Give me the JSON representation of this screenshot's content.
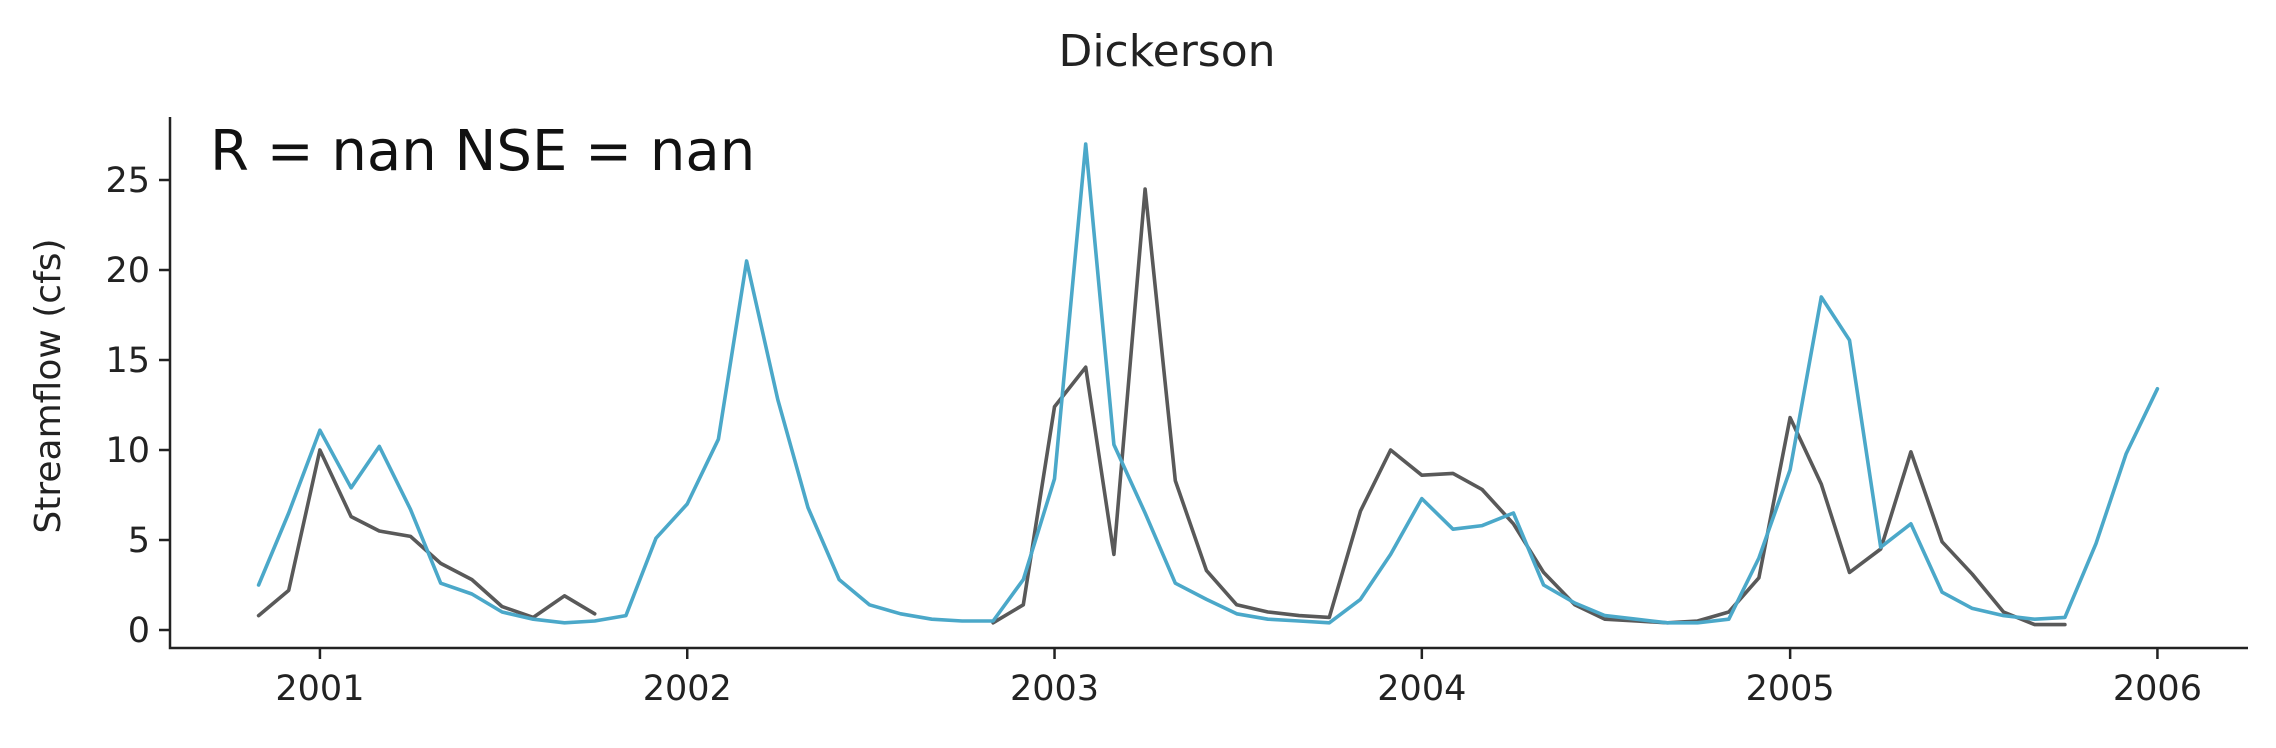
{
  "chart_data": {
    "type": "line",
    "title": "Dickerson",
    "annotation": "R = nan  NSE = nan",
    "xlabel": "",
    "ylabel": "Streamflow (cfs)",
    "xlim": [
      "2000-08-05",
      "2006-04-01"
    ],
    "ylim": [
      -1,
      28.5
    ],
    "x_ticks": [
      "2001-01-01",
      "2002-01-01",
      "2003-01-01",
      "2004-01-01",
      "2005-01-01",
      "2006-01-01"
    ],
    "x_tick_labels": [
      "2001",
      "2002",
      "2003",
      "2004",
      "2005",
      "2006"
    ],
    "y_ticks": [
      0,
      5,
      10,
      15,
      20,
      25
    ],
    "y_tick_labels": [
      "0",
      "5",
      "10",
      "15",
      "20",
      "25"
    ],
    "grid": false,
    "colors": {
      "observed": "#595959",
      "simulated": "#4ba8c9"
    },
    "series": [
      {
        "color_key": "observed",
        "segments": [
          [
            [
              "2000-11-01",
              0.8
            ],
            [
              "2000-12-01",
              2.2
            ],
            [
              "2001-01-01",
              10.0
            ],
            [
              "2001-02-01",
              6.3
            ],
            [
              "2001-03-01",
              5.5
            ],
            [
              "2001-04-01",
              5.2
            ],
            [
              "2001-05-01",
              3.7
            ],
            [
              "2001-06-01",
              2.8
            ],
            [
              "2001-07-01",
              1.3
            ],
            [
              "2001-08-01",
              0.7
            ],
            [
              "2001-09-01",
              1.9
            ],
            [
              "2001-10-01",
              0.9
            ]
          ],
          [
            [
              "2002-11-01",
              0.4
            ],
            [
              "2002-12-01",
              1.4
            ],
            [
              "2003-01-01",
              12.4
            ],
            [
              "2003-02-01",
              14.6
            ],
            [
              "2003-03-01",
              4.2
            ],
            [
              "2003-04-01",
              24.5
            ],
            [
              "2003-05-01",
              8.3
            ],
            [
              "2003-06-01",
              3.3
            ],
            [
              "2003-07-01",
              1.4
            ],
            [
              "2003-08-01",
              1.0
            ],
            [
              "2003-09-01",
              0.8
            ],
            [
              "2003-10-01",
              0.7
            ],
            [
              "2003-11-01",
              6.6
            ],
            [
              "2003-12-01",
              10.0
            ],
            [
              "2004-01-01",
              8.6
            ],
            [
              "2004-02-01",
              8.7
            ],
            [
              "2004-03-01",
              7.8
            ],
            [
              "2004-04-01",
              5.9
            ],
            [
              "2004-05-01",
              3.2
            ],
            [
              "2004-06-01",
              1.4
            ],
            [
              "2004-07-01",
              0.6
            ],
            [
              "2004-08-01",
              0.5
            ],
            [
              "2004-09-01",
              0.4
            ],
            [
              "2004-10-01",
              0.5
            ],
            [
              "2004-11-01",
              1.0
            ],
            [
              "2004-12-01",
              2.9
            ],
            [
              "2005-01-01",
              11.8
            ],
            [
              "2005-02-01",
              8.1
            ],
            [
              "2005-03-01",
              3.2
            ],
            [
              "2005-04-01",
              4.5
            ],
            [
              "2005-05-01",
              9.9
            ],
            [
              "2005-06-01",
              4.9
            ],
            [
              "2005-07-01",
              3.1
            ],
            [
              "2005-08-01",
              1.0
            ],
            [
              "2005-09-01",
              0.3
            ],
            [
              "2005-10-01",
              0.3
            ]
          ]
        ]
      },
      {
        "color_key": "simulated",
        "segments": [
          [
            [
              "2000-11-01",
              2.5
            ],
            [
              "2000-12-01",
              6.5
            ],
            [
              "2001-01-01",
              11.1
            ],
            [
              "2001-02-01",
              7.9
            ],
            [
              "2001-03-01",
              10.2
            ],
            [
              "2001-04-01",
              6.7
            ],
            [
              "2001-05-01",
              2.6
            ],
            [
              "2001-06-01",
              2.0
            ],
            [
              "2001-07-01",
              1.0
            ],
            [
              "2001-08-01",
              0.6
            ],
            [
              "2001-09-01",
              0.4
            ],
            [
              "2001-10-01",
              0.5
            ],
            [
              "2001-11-01",
              0.8
            ],
            [
              "2001-12-01",
              5.1
            ],
            [
              "2002-01-01",
              7.0
            ],
            [
              "2002-02-01",
              10.6
            ],
            [
              "2002-03-01",
              20.5
            ],
            [
              "2002-04-01",
              12.8
            ],
            [
              "2002-05-01",
              6.8
            ],
            [
              "2002-06-01",
              2.8
            ],
            [
              "2002-07-01",
              1.4
            ],
            [
              "2002-08-01",
              0.9
            ],
            [
              "2002-09-01",
              0.6
            ],
            [
              "2002-10-01",
              0.5
            ],
            [
              "2002-11-01",
              0.5
            ],
            [
              "2002-12-01",
              2.8
            ],
            [
              "2003-01-01",
              8.4
            ],
            [
              "2003-02-01",
              27.0
            ],
            [
              "2003-03-01",
              10.3
            ],
            [
              "2003-04-01",
              6.5
            ],
            [
              "2003-05-01",
              2.6
            ],
            [
              "2003-06-01",
              1.7
            ],
            [
              "2003-07-01",
              0.9
            ],
            [
              "2003-08-01",
              0.6
            ],
            [
              "2003-09-01",
              0.5
            ],
            [
              "2003-10-01",
              0.4
            ],
            [
              "2003-11-01",
              1.7
            ],
            [
              "2003-12-01",
              4.2
            ],
            [
              "2004-01-01",
              7.3
            ],
            [
              "2004-02-01",
              5.6
            ],
            [
              "2004-03-01",
              5.8
            ],
            [
              "2004-04-01",
              6.5
            ],
            [
              "2004-05-01",
              2.5
            ],
            [
              "2004-06-01",
              1.5
            ],
            [
              "2004-07-01",
              0.8
            ],
            [
              "2004-08-01",
              0.6
            ],
            [
              "2004-09-01",
              0.4
            ],
            [
              "2004-10-01",
              0.4
            ],
            [
              "2004-11-01",
              0.6
            ],
            [
              "2004-12-01",
              4.0
            ],
            [
              "2005-01-01",
              8.9
            ],
            [
              "2005-02-01",
              18.5
            ],
            [
              "2005-03-01",
              16.1
            ],
            [
              "2005-04-01",
              4.6
            ],
            [
              "2005-05-01",
              5.9
            ],
            [
              "2005-06-01",
              2.1
            ],
            [
              "2005-07-01",
              1.2
            ],
            [
              "2005-08-01",
              0.8
            ],
            [
              "2005-09-01",
              0.6
            ],
            [
              "2005-10-01",
              0.7
            ],
            [
              "2005-11-01",
              4.8
            ],
            [
              "2005-12-01",
              9.8
            ],
            [
              "2006-01-01",
              13.4
            ]
          ]
        ]
      }
    ]
  }
}
